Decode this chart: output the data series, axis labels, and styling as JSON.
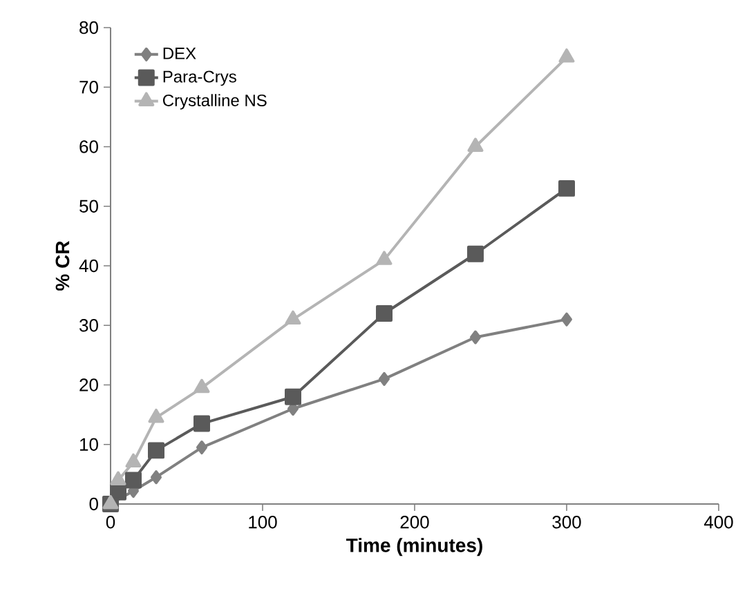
{
  "chart_data": {
    "type": "line",
    "xlabel": "Time (minutes)",
    "ylabel": "% CR",
    "x": [
      0,
      5,
      15,
      30,
      60,
      120,
      180,
      240,
      300
    ],
    "series": [
      {
        "name": "DEX",
        "color": "#808080",
        "marker": "diamond",
        "values": [
          0,
          null,
          2.2,
          4.5,
          9.5,
          16,
          21,
          28,
          31
        ]
      },
      {
        "name": "Para-Crys",
        "color": "#5a5a5a",
        "marker": "square",
        "values": [
          0,
          2,
          4,
          9,
          13.5,
          18,
          32,
          42,
          53
        ]
      },
      {
        "name": "Crystalline NS",
        "color": "#b4b4b4",
        "marker": "triangle",
        "values": [
          0,
          4,
          7,
          14.5,
          19.5,
          31,
          41,
          60,
          75
        ]
      }
    ],
    "xlim": [
      0,
      400
    ],
    "ylim": [
      0,
      80
    ],
    "xticks": [
      0,
      100,
      200,
      300,
      400
    ],
    "yticks": [
      0,
      10,
      20,
      30,
      40,
      50,
      60,
      70,
      80
    ],
    "grid": false,
    "legend": "top left"
  }
}
